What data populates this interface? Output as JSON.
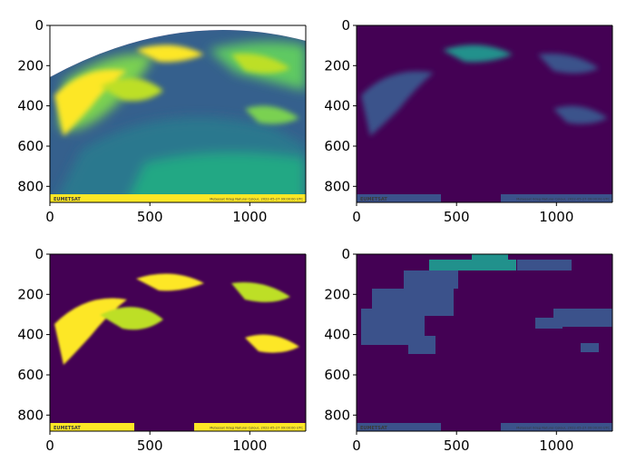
{
  "chart_data": [
    {
      "type": "heatmap",
      "title": "",
      "xlabel": "",
      "ylabel": "",
      "xlim": [
        0,
        1280
      ],
      "ylim": [
        0,
        880
      ],
      "y_inverted": true,
      "xticks": [
        0,
        500,
        1000
      ],
      "yticks": [
        0,
        200,
        400,
        600,
        800
      ],
      "colormap": "viridis",
      "banner_left": "EUMETSAT",
      "banner_right": "Meteosat 0deg Natural Colour, 2022-05-27 09:00:00 UTC"
    },
    {
      "type": "heatmap",
      "title": "",
      "xlabel": "",
      "ylabel": "",
      "xlim": [
        0,
        1280
      ],
      "ylim": [
        0,
        880
      ],
      "y_inverted": true,
      "xticks": [
        0,
        500,
        1000
      ],
      "yticks": [
        0,
        200,
        400,
        600,
        800
      ],
      "colormap": "viridis",
      "banner_left": "EUMETSAT",
      "banner_right": "Meteosat 0deg Natural Colour, 2022-05-27 09:00:00 UTC"
    },
    {
      "type": "heatmap",
      "title": "",
      "xlabel": "",
      "ylabel": "",
      "xlim": [
        0,
        1280
      ],
      "ylim": [
        0,
        880
      ],
      "y_inverted": true,
      "xticks": [
        0,
        500,
        1000
      ],
      "yticks": [
        0,
        200,
        400,
        600,
        800
      ],
      "colormap": "viridis",
      "banner_left": "EUMETSAT",
      "banner_right": "Meteosat 0deg Natural Colour, 2022-05-27 09:00:00 UTC"
    },
    {
      "type": "heatmap",
      "title": "",
      "xlabel": "",
      "ylabel": "",
      "xlim": [
        0,
        1280
      ],
      "ylim": [
        0,
        880
      ],
      "y_inverted": true,
      "xticks": [
        0,
        500,
        1000
      ],
      "yticks": [
        0,
        200,
        400,
        600,
        800
      ],
      "colormap": "viridis",
      "banner_left": "EUMETSAT",
      "banner_right": "Meteosat 0deg Natural Colour, 2022-05-27 09:00:00 UTC"
    }
  ],
  "colors": {
    "background": "#440154",
    "low": "#3b528b",
    "mid": "#21918c",
    "high": "#5ec962",
    "peak": "#fde725"
  }
}
